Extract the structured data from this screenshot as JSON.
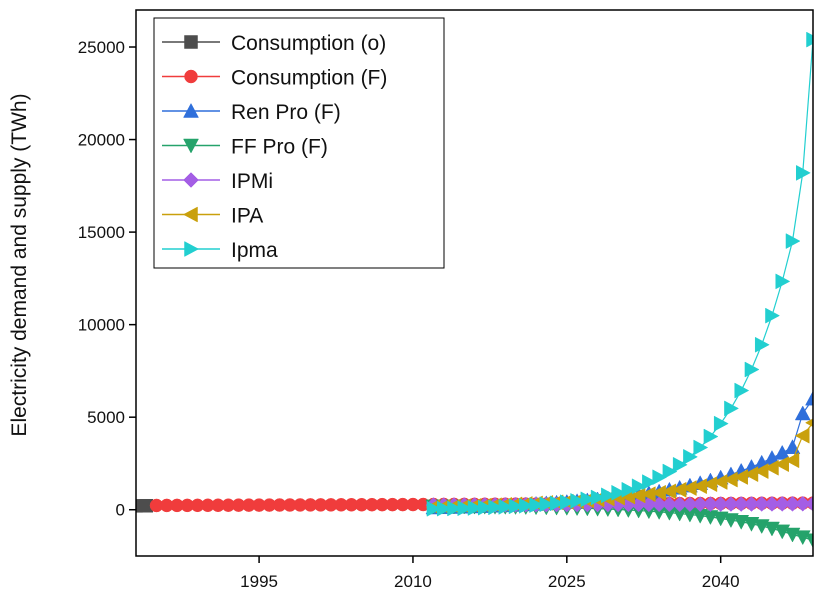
{
  "chart_data": {
    "type": "line",
    "title": "",
    "xlabel": "",
    "ylabel": "Electricity demand and supply (TWh)",
    "xlim": [
      1983,
      2049
    ],
    "ylim": [
      -2500,
      27000
    ],
    "xticks": [
      1995,
      2010,
      2025,
      2040
    ],
    "yticks": [
      0,
      5000,
      10000,
      15000,
      20000,
      25000
    ],
    "grid": false,
    "legend_position": "top-left",
    "series": [
      {
        "name": "Consumption (o)",
        "color": "#4d4d4d",
        "marker": "square",
        "x": [
          1983,
          1984
        ],
        "y": [
          210,
          215
        ]
      },
      {
        "name": "Consumption (F)",
        "color": "#f03c3c",
        "marker": "circle",
        "x": [
          1985,
          1986,
          1987,
          1988,
          1989,
          1990,
          1991,
          1992,
          1993,
          1994,
          1995,
          1996,
          1997,
          1998,
          1999,
          2000,
          2001,
          2002,
          2003,
          2004,
          2005,
          2006,
          2007,
          2008,
          2009,
          2010,
          2011,
          2012,
          2013,
          2014,
          2015,
          2016,
          2017,
          2018,
          2019,
          2020,
          2021,
          2022,
          2023,
          2024,
          2025,
          2026,
          2027,
          2028,
          2029,
          2030,
          2031,
          2032,
          2033,
          2034,
          2035,
          2036,
          2037,
          2038,
          2039,
          2040,
          2041,
          2042,
          2043,
          2044,
          2045,
          2046,
          2047,
          2048,
          2049
        ],
        "y": [
          230,
          232,
          234,
          236,
          238,
          240,
          242,
          244,
          246,
          248,
          250,
          252,
          254,
          256,
          258,
          260,
          262,
          264,
          266,
          268,
          270,
          272,
          274,
          276,
          278,
          280,
          282,
          284,
          286,
          288,
          290,
          292,
          294,
          296,
          298,
          300,
          302,
          304,
          306,
          308,
          310,
          312,
          314,
          316,
          318,
          320,
          322,
          324,
          326,
          328,
          330,
          332,
          334,
          336,
          338,
          340,
          342,
          344,
          346,
          348,
          350,
          352,
          354,
          356,
          358
        ]
      },
      {
        "name": "Ren Pro (F)",
        "color": "#2f6fdb",
        "marker": "triangle-up",
        "x": [
          2012,
          2013,
          2014,
          2015,
          2016,
          2017,
          2018,
          2019,
          2020,
          2021,
          2022,
          2023,
          2024,
          2025,
          2026,
          2027,
          2028,
          2029,
          2030,
          2031,
          2032,
          2033,
          2034,
          2035,
          2036,
          2037,
          2038,
          2039,
          2040,
          2041,
          2042,
          2043,
          2044,
          2045,
          2046,
          2047,
          2048,
          2049
        ],
        "y": [
          120,
          132,
          145,
          160,
          176,
          193,
          213,
          234,
          257,
          283,
          312,
          343,
          377,
          415,
          456,
          502,
          552,
          607,
          668,
          735,
          808,
          889,
          978,
          1076,
          1183,
          1302,
          1432,
          1575,
          1733,
          1906,
          2097,
          2306,
          2537,
          2791,
          3070,
          3377,
          5200,
          6000
        ]
      },
      {
        "name": "FF Pro (F)",
        "color": "#25a36b",
        "marker": "triangle-down",
        "x": [
          2012,
          2013,
          2014,
          2015,
          2016,
          2017,
          2018,
          2019,
          2020,
          2021,
          2022,
          2023,
          2024,
          2025,
          2026,
          2027,
          2028,
          2029,
          2030,
          2031,
          2032,
          2033,
          2034,
          2035,
          2036,
          2037,
          2038,
          2039,
          2040,
          2041,
          2042,
          2043,
          2044,
          2045,
          2046,
          2047,
          2048,
          2049
        ],
        "y": [
          180,
          178,
          176,
          173,
          170,
          166,
          162,
          157,
          151,
          144,
          136,
          127,
          116,
          104,
          90,
          74,
          56,
          35,
          12,
          -15,
          -45,
          -79,
          -117,
          -160,
          -208,
          -262,
          -323,
          -391,
          -468,
          -554,
          -650,
          -758,
          -879,
          -1015,
          -1168,
          -1339,
          -1480,
          -1650
        ]
      },
      {
        "name": "IPMi",
        "color": "#a45ee5",
        "marker": "diamond",
        "x": [
          2012,
          2013,
          2014,
          2015,
          2016,
          2017,
          2018,
          2019,
          2020,
          2021,
          2022,
          2023,
          2024,
          2025,
          2026,
          2027,
          2028,
          2029,
          2030,
          2031,
          2032,
          2033,
          2034,
          2035,
          2036,
          2037,
          2038,
          2039,
          2040,
          2041,
          2042,
          2043,
          2044,
          2045,
          2046,
          2047,
          2048,
          2049
        ],
        "y": [
          250,
          252,
          254,
          256,
          258,
          260,
          262,
          264,
          266,
          268,
          270,
          272,
          274,
          276,
          278,
          280,
          282,
          284,
          286,
          288,
          290,
          292,
          294,
          296,
          298,
          300,
          302,
          304,
          306,
          308,
          310,
          312,
          314,
          316,
          318,
          320,
          322,
          324
        ]
      },
      {
        "name": "IPA",
        "color": "#c9a00c",
        "marker": "triangle-left",
        "x": [
          2012,
          2013,
          2014,
          2015,
          2016,
          2017,
          2018,
          2019,
          2020,
          2021,
          2022,
          2023,
          2024,
          2025,
          2026,
          2027,
          2028,
          2029,
          2030,
          2031,
          2032,
          2033,
          2034,
          2035,
          2036,
          2037,
          2038,
          2039,
          2040,
          2041,
          2042,
          2043,
          2044,
          2045,
          2046,
          2047,
          2048,
          2049
        ],
        "y": [
          150,
          162,
          176,
          191,
          207,
          225,
          244,
          265,
          288,
          313,
          340,
          369,
          401,
          435,
          473,
          513,
          557,
          605,
          657,
          714,
          775,
          842,
          914,
          993,
          1078,
          1171,
          1272,
          1381,
          1500,
          1629,
          1769,
          1921,
          2087,
          2266,
          2461,
          2673,
          4000,
          4700
        ]
      },
      {
        "name": "Ipma",
        "color": "#22cfd0",
        "marker": "triangle-right",
        "x": [
          2012,
          2013,
          2014,
          2015,
          2016,
          2017,
          2018,
          2019,
          2020,
          2021,
          2022,
          2023,
          2024,
          2025,
          2026,
          2027,
          2028,
          2029,
          2030,
          2031,
          2032,
          2033,
          2034,
          2035,
          2036,
          2037,
          2038,
          2039,
          2040,
          2041,
          2042,
          2043,
          2044,
          2045,
          2046,
          2047,
          2048,
          2049
        ],
        "y": [
          50,
          58,
          68,
          80,
          94,
          111,
          130,
          153,
          180,
          212,
          249,
          293,
          345,
          406,
          478,
          562,
          661,
          778,
          915,
          1077,
          1267,
          1491,
          1754,
          2064,
          2428,
          2857,
          3361,
          3954,
          4652,
          5473,
          6439,
          7576,
          8913,
          10486,
          12337,
          14515,
          18200,
          25400
        ]
      }
    ]
  }
}
